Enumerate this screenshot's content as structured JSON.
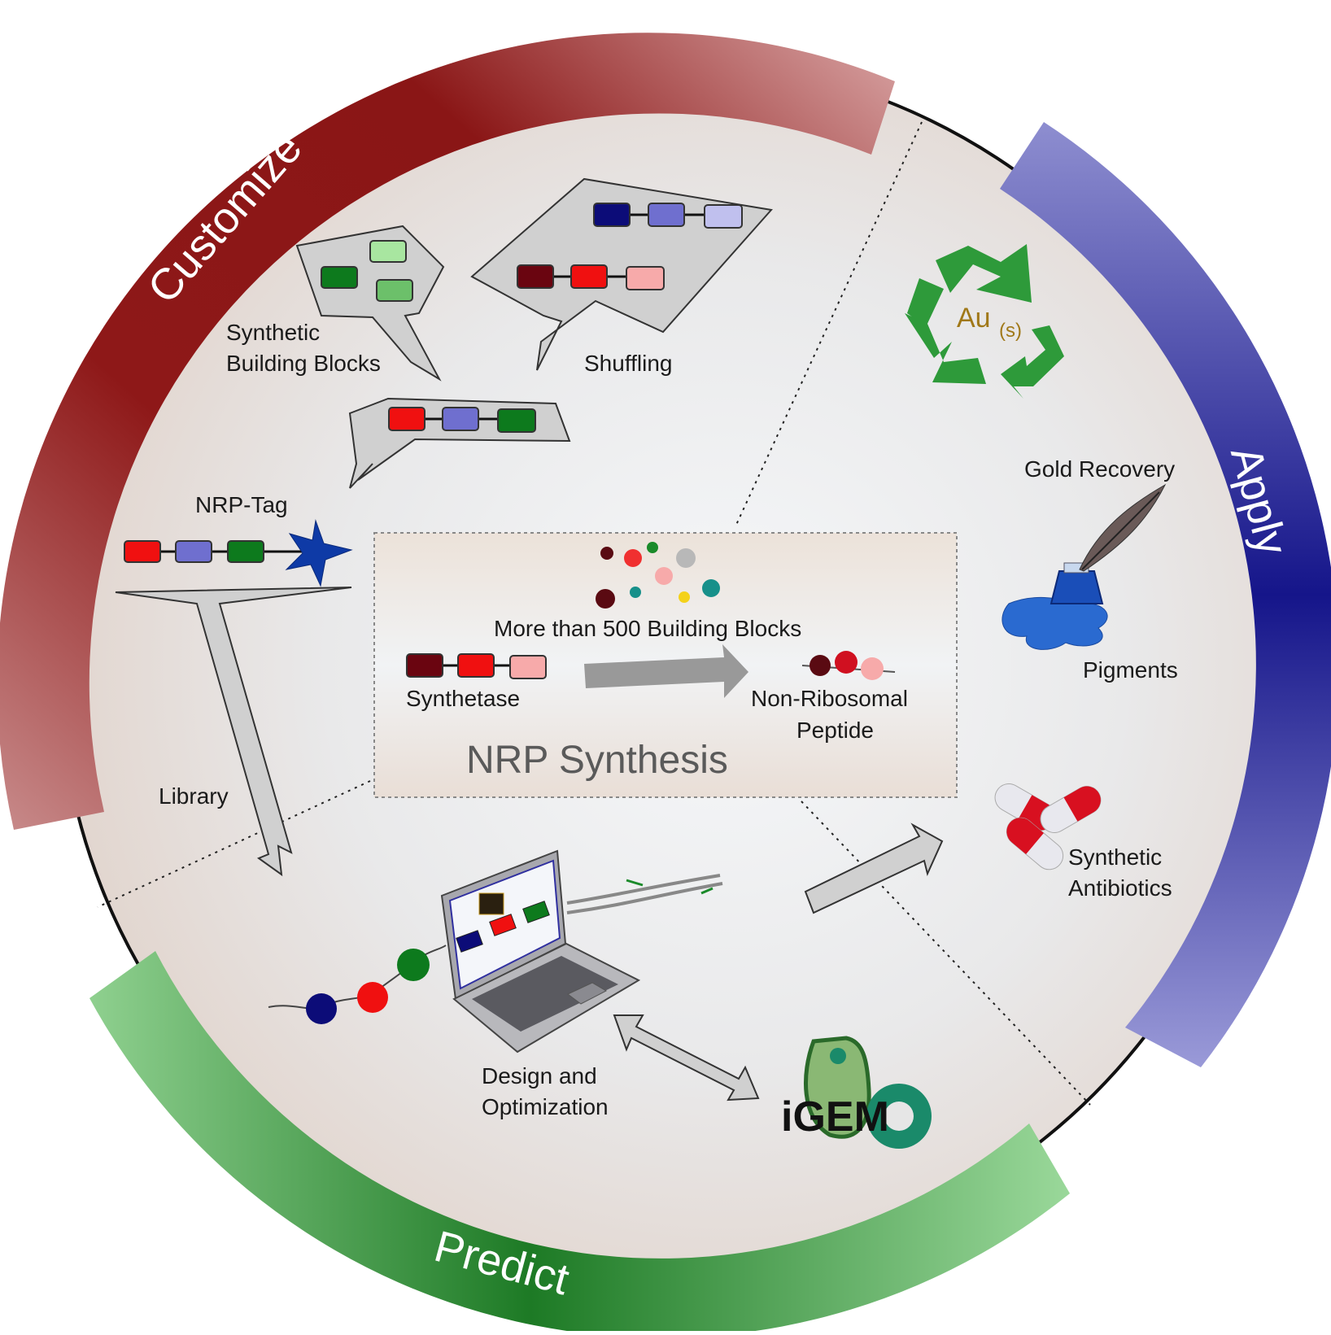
{
  "phases": {
    "customize": "Customize",
    "apply": "Apply",
    "predict": "Predict"
  },
  "labels": {
    "synthetic_building_blocks": [
      "Synthetic",
      "Building Blocks"
    ],
    "shuffling": "Shuffling",
    "nrp_tag": "NRP-Tag",
    "library": "Library",
    "gold_recovery": "Gold Recovery",
    "pigments": "Pigments",
    "synthetic_antibiotics": [
      "Synthetic",
      "Antibiotics"
    ],
    "design_optimization": [
      "Design and",
      "Optimization"
    ],
    "igem": "iGEM",
    "au_symbol": "Au",
    "au_subscript": "(s)"
  },
  "center_box": {
    "building_blocks": "More than 500 Building Blocks",
    "synthetase": "Synthetase",
    "peptide": [
      "Non-Ribosomal",
      "Peptide"
    ],
    "title": "NRP Synthesis"
  },
  "colors": {
    "customize": "#8b1a1a",
    "apply": "#1f1f8a",
    "predict": "#1f7a2a",
    "recycle": "#2e9a3a",
    "gold": "#a07818"
  }
}
